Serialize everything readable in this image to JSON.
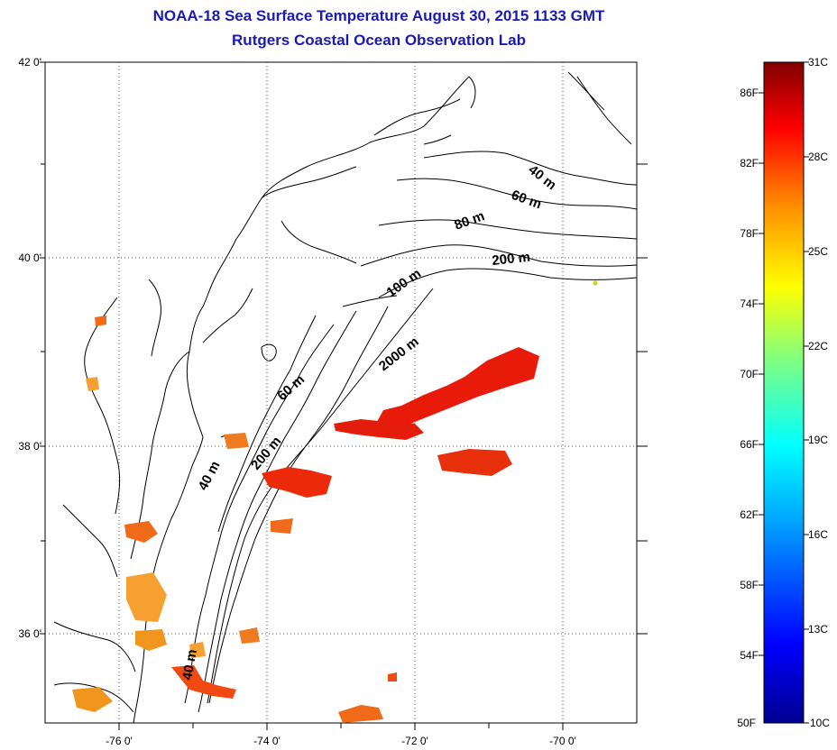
{
  "header": {
    "title": "NOAA-18 Sea Surface Temperature August 30, 2015 1133 GMT",
    "subtitle": "Rutgers Coastal Ocean Observation Lab"
  },
  "map": {
    "lat_ticks": [
      "42 0'",
      "40 0'",
      "38 0'",
      "36 0'"
    ],
    "lon_ticks": [
      "-76 0'",
      "-74 0'",
      "-72 0'",
      "-70 0'"
    ],
    "lat_range": [
      35.0,
      42.0
    ],
    "lon_range": [
      -77.0,
      -69.0
    ],
    "isobaths": [
      "40 m",
      "60 m",
      "80 m",
      "100 m",
      "200 m",
      "2000 m",
      "60 m",
      "200 m",
      "40 m",
      "40 m"
    ],
    "gridlines": "dotted"
  },
  "colorbar": {
    "fahrenheit": [
      "86F",
      "82F",
      "78F",
      "74F",
      "70F",
      "66F",
      "62F",
      "58F",
      "54F",
      "50F"
    ],
    "celsius": [
      "31C",
      "28C",
      "25C",
      "22C",
      "19C",
      "16C",
      "13C",
      "10C"
    ],
    "min_c": 10,
    "max_c": 31,
    "colors": [
      "#00008f",
      "#0000ff",
      "#00a0ff",
      "#00ffff",
      "#80ff80",
      "#ffff00",
      "#ff9000",
      "#ff0000",
      "#800000"
    ]
  },
  "sst_colors": {
    "warm_red": "#e81a0a",
    "orange": "#f06a1a",
    "light_orange": "#f5a030"
  }
}
